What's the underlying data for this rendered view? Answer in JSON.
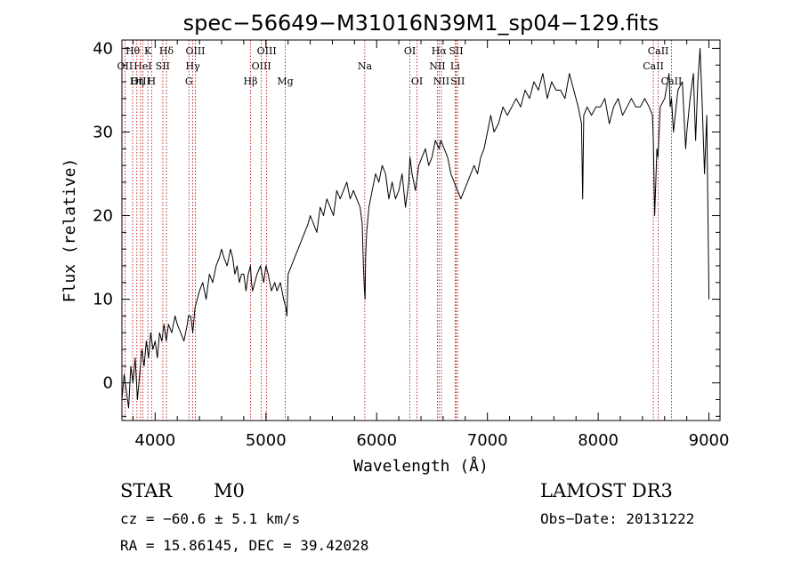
{
  "chart_data": {
    "type": "line",
    "title": "spec−56649−M31016N39M1_sp04−129.fits",
    "xlabel": "Wavelength (Å)",
    "ylabel": "Flux (relative)",
    "xlim": [
      3700,
      9100
    ],
    "ylim": [
      -4.5,
      41
    ],
    "xticks": [
      4000,
      5000,
      6000,
      7000,
      8000,
      9000
    ],
    "yticks": [
      0,
      10,
      20,
      30,
      40
    ],
    "grid": false,
    "series": [
      {
        "color": "#000000",
        "x": [
          3700,
          3720,
          3740,
          3760,
          3780,
          3800,
          3820,
          3840,
          3860,
          3880,
          3900,
          3920,
          3940,
          3960,
          3980,
          4000,
          4020,
          4040,
          4060,
          4080,
          4100,
          4120,
          4150,
          4180,
          4200,
          4230,
          4260,
          4290,
          4300,
          4320,
          4340,
          4360,
          4380,
          4400,
          4430,
          4460,
          4490,
          4520,
          4550,
          4580,
          4600,
          4620,
          4650,
          4680,
          4700,
          4720,
          4740,
          4760,
          4780,
          4800,
          4820,
          4840,
          4860,
          4870,
          4880,
          4900,
          4920,
          4950,
          4980,
          5000,
          5020,
          5050,
          5080,
          5100,
          5130,
          5160,
          5180,
          5190,
          5200,
          5230,
          5260,
          5290,
          5320,
          5350,
          5380,
          5400,
          5430,
          5460,
          5490,
          5520,
          5550,
          5580,
          5610,
          5640,
          5670,
          5700,
          5730,
          5760,
          5790,
          5820,
          5850,
          5870,
          5880,
          5890,
          5895,
          5900,
          5910,
          5930,
          5960,
          5990,
          6020,
          6050,
          6080,
          6110,
          6140,
          6170,
          6200,
          6230,
          6260,
          6290,
          6300,
          6320,
          6350,
          6380,
          6410,
          6440,
          6470,
          6500,
          6530,
          6563,
          6580,
          6610,
          6640,
          6670,
          6700,
          6730,
          6760,
          6790,
          6820,
          6850,
          6880,
          6910,
          6940,
          6970,
          7000,
          7030,
          7060,
          7100,
          7140,
          7180,
          7220,
          7260,
          7300,
          7340,
          7380,
          7420,
          7460,
          7500,
          7540,
          7580,
          7620,
          7660,
          7700,
          7740,
          7760,
          7780,
          7820,
          7850,
          7860,
          7870,
          7900,
          7940,
          7980,
          8020,
          8060,
          8100,
          8140,
          8180,
          8220,
          8260,
          8300,
          8340,
          8380,
          8420,
          8460,
          8490,
          8498,
          8510,
          8530,
          8540,
          8560,
          8600,
          8640,
          8650,
          8662,
          8680,
          8720,
          8760,
          8790,
          8800,
          8830,
          8860,
          8880,
          8900,
          8920,
          8940,
          8960,
          8980,
          9000
        ],
        "y": [
          -2,
          1,
          -1,
          -3,
          2,
          0,
          3,
          -2,
          1,
          4,
          2,
          5,
          3,
          6,
          4,
          5,
          3,
          6,
          5,
          7,
          5,
          7,
          6,
          8,
          7,
          6,
          5,
          7,
          8,
          8,
          6,
          9,
          10,
          11,
          12,
          10,
          13,
          12,
          14,
          15,
          16,
          15,
          14,
          16,
          15,
          13,
          14,
          12,
          13,
          13,
          11,
          13,
          14,
          12,
          11,
          12,
          13,
          14,
          12,
          14,
          13,
          11,
          12,
          11,
          12,
          10,
          9,
          8,
          13,
          14,
          15,
          16,
          17,
          18,
          19,
          20,
          19,
          18,
          21,
          20,
          22,
          21,
          20,
          23,
          22,
          23,
          24,
          22,
          23,
          22,
          21,
          19,
          14,
          11,
          10,
          15,
          18,
          21,
          23,
          25,
          24,
          26,
          25,
          22,
          24,
          22,
          23,
          25,
          21,
          24,
          27,
          25,
          23,
          26,
          27,
          28,
          26,
          27,
          29,
          28,
          29,
          28,
          27,
          25,
          24,
          23,
          22,
          23,
          24,
          25,
          26,
          25,
          27,
          28,
          30,
          32,
          30,
          31,
          33,
          32,
          33,
          34,
          33,
          35,
          34,
          36,
          35,
          37,
          34,
          36,
          35,
          35,
          34,
          37,
          36,
          35,
          33,
          31,
          22,
          32,
          33,
          32,
          33,
          33,
          34,
          31,
          33,
          34,
          32,
          33,
          34,
          33,
          33,
          34,
          33,
          32,
          29,
          20,
          28,
          27,
          33,
          34,
          37,
          33,
          34,
          30,
          35,
          36,
          28,
          30,
          34,
          37,
          29,
          36,
          40,
          33,
          25,
          32,
          10
        ]
      }
    ],
    "lines": [
      {
        "label": "Hθ",
        "x": 3797,
        "row": 1,
        "color": "#b00000"
      },
      {
        "label": "K",
        "x": 3934,
        "row": 1,
        "color": "#b00000"
      },
      {
        "label": "Hδ",
        "x": 4102,
        "row": 1,
        "color": "#b00000"
      },
      {
        "label": "OIII",
        "x": 4363,
        "row": 1,
        "color": "#b00000"
      },
      {
        "label": "OIII",
        "x": 5007,
        "row": 1,
        "color": "#b00000"
      },
      {
        "label": "OI",
        "x": 6300,
        "row": 1,
        "color": "#b00000"
      },
      {
        "label": "Hα",
        "x": 6563,
        "row": 1,
        "color": "#b00000"
      },
      {
        "label": "SII",
        "x": 6717,
        "row": 1,
        "color": "#b00000"
      },
      {
        "label": "CaII",
        "x": 8542,
        "row": 1,
        "color": "#b00000"
      },
      {
        "label": "OII",
        "x": 3727,
        "row": 2,
        "color": "#b00000"
      },
      {
        "label": "HeI",
        "x": 3889,
        "row": 2,
        "color": "#b00000"
      },
      {
        "label": "SII",
        "x": 4069,
        "row": 2,
        "color": "#b00000"
      },
      {
        "label": "Hγ",
        "x": 4340,
        "row": 2,
        "color": "#b00000"
      },
      {
        "label": "OIII",
        "x": 4959,
        "row": 2,
        "color": "#b00000"
      },
      {
        "label": "Na",
        "x": 5893,
        "row": 2,
        "color": "#b00000"
      },
      {
        "label": "NII",
        "x": 6548,
        "row": 2,
        "color": "#b00000"
      },
      {
        "label": "Li",
        "x": 6708,
        "row": 2,
        "color": "#b00000"
      },
      {
        "label": "CaII",
        "x": 8498,
        "row": 2,
        "color": "#b00000"
      },
      {
        "label": "OIII",
        "x": 3868,
        "row": 3,
        "color": "#b00000"
      },
      {
        "label": "Hη",
        "x": 3835,
        "row": 3,
        "color": "#b00000"
      },
      {
        "label": "H",
        "x": 3968,
        "row": 3,
        "color": "#b00000"
      },
      {
        "label": "G",
        "x": 4305,
        "row": 3,
        "color": "#b00000"
      },
      {
        "label": "Hβ",
        "x": 4861,
        "row": 3,
        "color": "#b00000"
      },
      {
        "label": "Mg",
        "x": 5175,
        "row": 3,
        "color": "#b00000"
      },
      {
        "label": "OI",
        "x": 6364,
        "row": 3,
        "color": "#b00000"
      },
      {
        "label": "NII",
        "x": 6584,
        "row": 3,
        "color": "#b00000"
      },
      {
        "label": "SII",
        "x": 6731,
        "row": 3,
        "color": "#b00000"
      },
      {
        "label": "CaII",
        "x": 8662,
        "row": 3,
        "color": "#b00000"
      }
    ]
  },
  "info": {
    "class": "STAR",
    "subclass": "M0",
    "cz": "cz = −60.6 ± 5.1 km/s",
    "radec": "RA =  15.86145, DEC =  39.42028",
    "survey": "LAMOST DR3",
    "obsdate": "Obs−Date: 20131222"
  }
}
